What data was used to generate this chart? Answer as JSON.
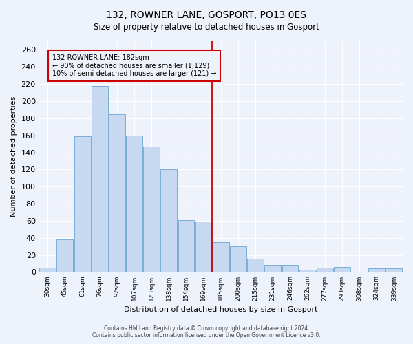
{
  "title": "132, ROWNER LANE, GOSPORT, PO13 0ES",
  "subtitle": "Size of property relative to detached houses in Gosport",
  "xlabel": "Distribution of detached houses by size in Gosport",
  "ylabel": "Number of detached properties",
  "bar_labels": [
    "30sqm",
    "45sqm",
    "61sqm",
    "76sqm",
    "92sqm",
    "107sqm",
    "123sqm",
    "138sqm",
    "154sqm",
    "169sqm",
    "185sqm",
    "200sqm",
    "215sqm",
    "231sqm",
    "246sqm",
    "262sqm",
    "277sqm",
    "293sqm",
    "308sqm",
    "324sqm",
    "339sqm"
  ],
  "bar_heights": [
    5,
    38,
    159,
    218,
    185,
    160,
    147,
    120,
    61,
    59,
    35,
    30,
    16,
    8,
    8,
    3,
    5,
    6,
    0,
    4,
    4
  ],
  "bar_color": "#c6d9f0",
  "bar_edge_color": "#7aaed6",
  "ylim": [
    0,
    270
  ],
  "yticks": [
    0,
    20,
    40,
    60,
    80,
    100,
    120,
    140,
    160,
    180,
    200,
    220,
    240,
    260
  ],
  "vline_color": "#cc0000",
  "annotation_title": "132 ROWNER LANE: 182sqm",
  "annotation_line1": "← 90% of detached houses are smaller (1,129)",
  "annotation_line2": "10% of semi-detached houses are larger (121) →",
  "annotation_box_color": "#cc0000",
  "footer_line1": "Contains HM Land Registry data © Crown copyright and database right 2024.",
  "footer_line2": "Contains public sector information licensed under the Open Government Licence v3.0.",
  "bg_color": "#eef2fb"
}
